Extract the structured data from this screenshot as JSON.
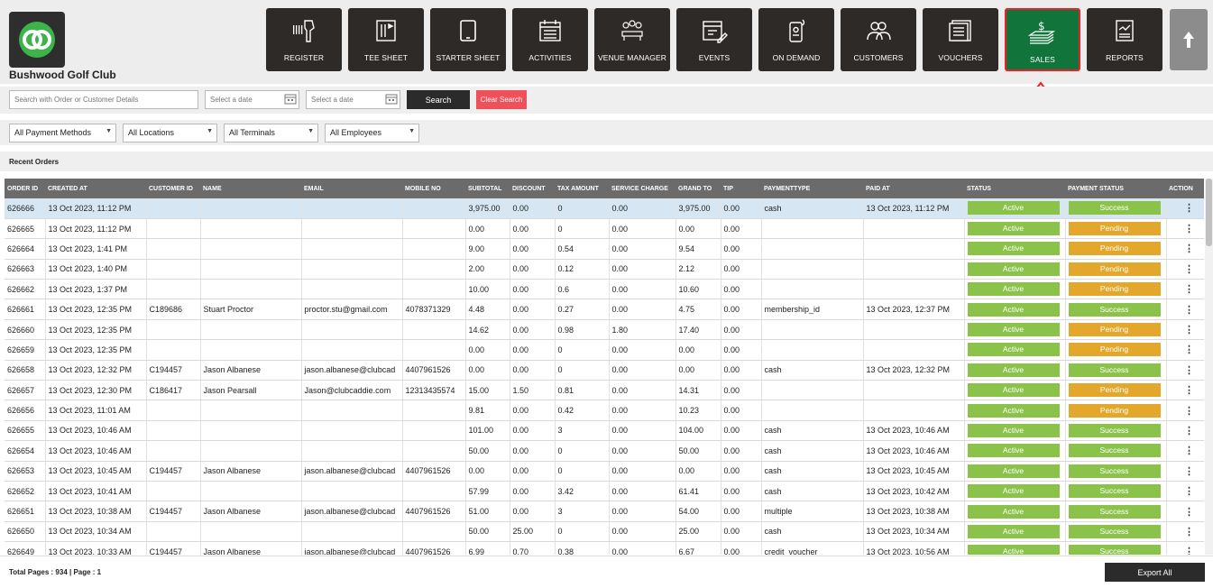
{
  "brand": {
    "club_name": "Bushwood Golf Club",
    "accent": "#10743b"
  },
  "nav": [
    {
      "label": "REGISTER",
      "icon": "barcode-scanner-icon"
    },
    {
      "label": "TEE SHEET",
      "icon": "tee-sheet-icon"
    },
    {
      "label": "STARTER SHEET",
      "icon": "tablet-icon"
    },
    {
      "label": "ACTIVITIES",
      "icon": "calendar-list-icon"
    },
    {
      "label": "VENUE MANAGER",
      "icon": "people-table-icon"
    },
    {
      "label": "EVENTS",
      "icon": "calendar-edit-icon"
    },
    {
      "label": "ON DEMAND",
      "icon": "phone-order-icon"
    },
    {
      "label": "CUSTOMERS",
      "icon": "customers-icon"
    },
    {
      "label": "VOUCHERS",
      "icon": "voucher-icon"
    },
    {
      "label": "SALES",
      "icon": "sales-money-icon",
      "active": true
    },
    {
      "label": "REPORTS",
      "icon": "report-icon"
    }
  ],
  "search": {
    "placeholder": "Search with Order or Customer Details",
    "date_placeholder_1": "Select a date",
    "date_placeholder_2": "Select a date",
    "search_label": "Search",
    "clear_label": "Clear Search"
  },
  "filters": {
    "payment_methods": "All Payment Methods",
    "locations": "All Locations",
    "terminals": "All Terminals",
    "employees": "All Employees"
  },
  "section_title": "Recent Orders",
  "columns": [
    "ORDER ID",
    "CREATED AT",
    "CUSTOMER ID",
    "NAME",
    "EMAIL",
    "MOBILE NO",
    "SUBTOTAL",
    "DISCOUNT",
    "TAX AMOUNT",
    "SERVICE CHARGE",
    "GRAND TO",
    "TIP",
    "PAYMENTTYPE",
    "PAID AT",
    "STATUS",
    "PAYMENT STATUS",
    "ACTION"
  ],
  "rows": [
    [
      "626666",
      "13 Oct 2023, 11:12 PM",
      "",
      "",
      "",
      "",
      "3,975.00",
      "0.00",
      "0",
      "0.00",
      "3,975.00",
      "0.00",
      "cash",
      "13 Oct 2023, 11:12 PM",
      "Active",
      "Success"
    ],
    [
      "626665",
      "13 Oct 2023, 11:12 PM",
      "",
      "",
      "",
      "",
      "0.00",
      "0.00",
      "0",
      "0.00",
      "0.00",
      "0.00",
      "",
      "",
      "Active",
      "Pending"
    ],
    [
      "626664",
      "13 Oct 2023, 1:41 PM",
      "",
      "",
      "",
      "",
      "9.00",
      "0.00",
      "0.54",
      "0.00",
      "9.54",
      "0.00",
      "",
      "",
      "Active",
      "Pending"
    ],
    [
      "626663",
      "13 Oct 2023, 1:40 PM",
      "",
      "",
      "",
      "",
      "2.00",
      "0.00",
      "0.12",
      "0.00",
      "2.12",
      "0.00",
      "",
      "",
      "Active",
      "Pending"
    ],
    [
      "626662",
      "13 Oct 2023, 1:37 PM",
      "",
      "",
      "",
      "",
      "10.00",
      "0.00",
      "0.6",
      "0.00",
      "10.60",
      "0.00",
      "",
      "",
      "Active",
      "Pending"
    ],
    [
      "626661",
      "13 Oct 2023, 12:35 PM",
      "C189686",
      "Stuart Proctor",
      "proctor.stu@gmail.com",
      "4078371329",
      "4.48",
      "0.00",
      "0.27",
      "0.00",
      "4.75",
      "0.00",
      "membership_id",
      "13 Oct 2023, 12:37 PM",
      "Active",
      "Success"
    ],
    [
      "626660",
      "13 Oct 2023, 12:35 PM",
      "",
      "",
      "",
      "",
      "14.62",
      "0.00",
      "0.98",
      "1.80",
      "17.40",
      "0.00",
      "",
      "",
      "Active",
      "Pending"
    ],
    [
      "626659",
      "13 Oct 2023, 12:35 PM",
      "",
      "",
      "",
      "",
      "0.00",
      "0.00",
      "0",
      "0.00",
      "0.00",
      "0.00",
      "",
      "",
      "Active",
      "Pending"
    ],
    [
      "626658",
      "13 Oct 2023, 12:32 PM",
      "C194457",
      "Jason Albanese",
      "jason.albanese@clubcad",
      "4407961526",
      "0.00",
      "0.00",
      "0",
      "0.00",
      "0.00",
      "0.00",
      "cash",
      "13 Oct 2023, 12:32 PM",
      "Active",
      "Success"
    ],
    [
      "626657",
      "13 Oct 2023, 12:30 PM",
      "C186417",
      "Jason Pearsall",
      "Jason@clubcaddie.com",
      "12313435574",
      "15.00",
      "1.50",
      "0.81",
      "0.00",
      "14.31",
      "0.00",
      "",
      "",
      "Active",
      "Pending"
    ],
    [
      "626656",
      "13 Oct 2023, 11:01 AM",
      "",
      "",
      "",
      "",
      "9.81",
      "0.00",
      "0.42",
      "0.00",
      "10.23",
      "0.00",
      "",
      "",
      "Active",
      "Pending"
    ],
    [
      "626655",
      "13 Oct 2023, 10:46 AM",
      "",
      "",
      "",
      "",
      "101.00",
      "0.00",
      "3",
      "0.00",
      "104.00",
      "0.00",
      "cash",
      "13 Oct 2023, 10:46 AM",
      "Active",
      "Success"
    ],
    [
      "626654",
      "13 Oct 2023, 10:46 AM",
      "",
      "",
      "",
      "",
      "50.00",
      "0.00",
      "0",
      "0.00",
      "50.00",
      "0.00",
      "cash",
      "13 Oct 2023, 10:46 AM",
      "Active",
      "Success"
    ],
    [
      "626653",
      "13 Oct 2023, 10:45 AM",
      "C194457",
      "Jason Albanese",
      "jason.albanese@clubcad",
      "4407961526",
      "0.00",
      "0.00",
      "0",
      "0.00",
      "0.00",
      "0.00",
      "cash",
      "13 Oct 2023, 10:45 AM",
      "Active",
      "Success"
    ],
    [
      "626652",
      "13 Oct 2023, 10:41 AM",
      "",
      "",
      "",
      "",
      "57.99",
      "0.00",
      "3.42",
      "0.00",
      "61.41",
      "0.00",
      "cash",
      "13 Oct 2023, 10:42 AM",
      "Active",
      "Success"
    ],
    [
      "626651",
      "13 Oct 2023, 10:38 AM",
      "C194457",
      "Jason Albanese",
      "jason.albanese@clubcad",
      "4407961526",
      "51.00",
      "0.00",
      "3",
      "0.00",
      "54.00",
      "0.00",
      "multiple",
      "13 Oct 2023, 10:38 AM",
      "Active",
      "Success"
    ],
    [
      "626650",
      "13 Oct 2023, 10:34 AM",
      "",
      "",
      "",
      "",
      "50.00",
      "25.00",
      "0",
      "0.00",
      "25.00",
      "0.00",
      "cash",
      "13 Oct 2023, 10:34 AM",
      "Active",
      "Success"
    ],
    [
      "626649",
      "13 Oct 2023, 10:33 AM",
      "C194457",
      "Jason Albanese",
      "jason.albanese@clubcad",
      "4407961526",
      "6.99",
      "0.70",
      "0.38",
      "0.00",
      "6.67",
      "0.00",
      "credit_voucher",
      "13 Oct 2023, 10:56 AM",
      "Active",
      "Success"
    ]
  ],
  "footer": {
    "pages_text": "Total Pages : 934 | Page : 1",
    "export_label": "Export All"
  }
}
